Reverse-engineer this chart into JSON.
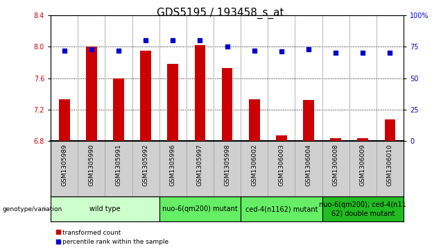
{
  "title": "GDS5195 / 193458_s_at",
  "samples": [
    "GSM1305989",
    "GSM1305990",
    "GSM1305991",
    "GSM1305992",
    "GSM1305996",
    "GSM1305997",
    "GSM1305998",
    "GSM1306002",
    "GSM1306003",
    "GSM1306004",
    "GSM1306008",
    "GSM1306009",
    "GSM1306010"
  ],
  "bar_values": [
    7.33,
    8.0,
    7.6,
    7.95,
    7.78,
    8.02,
    7.73,
    7.33,
    6.87,
    7.32,
    6.84,
    6.84,
    7.08
  ],
  "dot_values": [
    72,
    73,
    72,
    80,
    80,
    80,
    75,
    72,
    71,
    73,
    70,
    70,
    70
  ],
  "ylim_left": [
    6.8,
    8.4
  ],
  "ylim_right": [
    0,
    100
  ],
  "yticks_left": [
    6.8,
    7.2,
    7.6,
    8.0,
    8.4
  ],
  "yticks_right": [
    0,
    25,
    50,
    75,
    100
  ],
  "bar_color": "#cc0000",
  "dot_color": "#0000cc",
  "bar_bottom": 6.8,
  "groups": [
    {
      "label": "wild type",
      "start": 0,
      "end": 3,
      "color": "#ccffcc"
    },
    {
      "label": "nuo-6(qm200) mutant",
      "start": 4,
      "end": 6,
      "color": "#66ee66"
    },
    {
      "label": "ced-4(n1162) mutant",
      "start": 7,
      "end": 9,
      "color": "#66ee66"
    },
    {
      "label": "nuo-6(qm200); ced-4(n11\n62) double mutant",
      "start": 10,
      "end": 12,
      "color": "#22bb22"
    }
  ],
  "bg_color": "#d0d0d0",
  "plot_bg": "#ffffff",
  "left_axis_color": "#cc0000",
  "right_axis_color": "#0000cc",
  "fontsize_title": 11,
  "fontsize_tick": 7,
  "fontsize_sample": 6.5,
  "fontsize_group": 7,
  "legend_items": [
    "transformed count",
    "percentile rank within the sample"
  ]
}
